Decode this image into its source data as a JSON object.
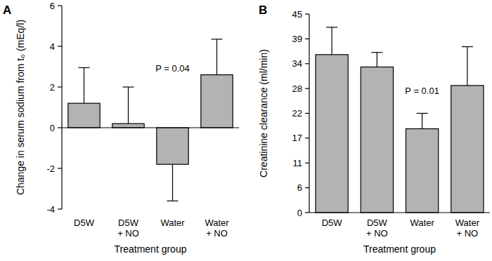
{
  "chart_data": [
    {
      "type": "bar",
      "title": "A",
      "categories": [
        "D5W",
        "D5W + NO",
        "Water",
        "Water + NO"
      ],
      "values": [
        1.2,
        0.2,
        -1.8,
        2.6
      ],
      "errors": [
        1.75,
        1.8,
        1.8,
        1.75
      ],
      "color": "#b3b3b3",
      "x_label": "Treatment group",
      "y_label": "Change in serum sodium from t₀ (mEq/l)",
      "annotation": "P = 0.04",
      "ylim": [
        -4,
        6
      ],
      "yticks": [
        -4,
        -2,
        0,
        2,
        4,
        6
      ],
      "grid": false
    },
    {
      "type": "bar",
      "title": "B",
      "categories": [
        "D5W",
        "D5W + NO",
        "Water",
        "Water + NO"
      ],
      "values": [
        35.8,
        33,
        19,
        28.8
      ],
      "errors": [
        6.2,
        3.3,
        3.5,
        8.8
      ],
      "color": "#b3b3b3",
      "x_label": "Treatment group",
      "y_label": "Creatinine clearance (ml/min)",
      "annotation": "P = 0.01",
      "ylim": [
        0,
        45
      ],
      "yticks": [
        0,
        {
          "value": 5.625,
          "label": "6"
        },
        {
          "value": 11.25,
          "label": "11"
        },
        {
          "value": 16.875,
          "label": "17"
        },
        {
          "value": 22.5,
          "label": "22"
        },
        {
          "value": 28.125,
          "label": "28"
        },
        {
          "value": 33.75,
          "label": "34"
        },
        {
          "value": 39.375,
          "label": "39"
        },
        {
          "value": 45,
          "label": "45"
        }
      ],
      "grid": false
    }
  ]
}
